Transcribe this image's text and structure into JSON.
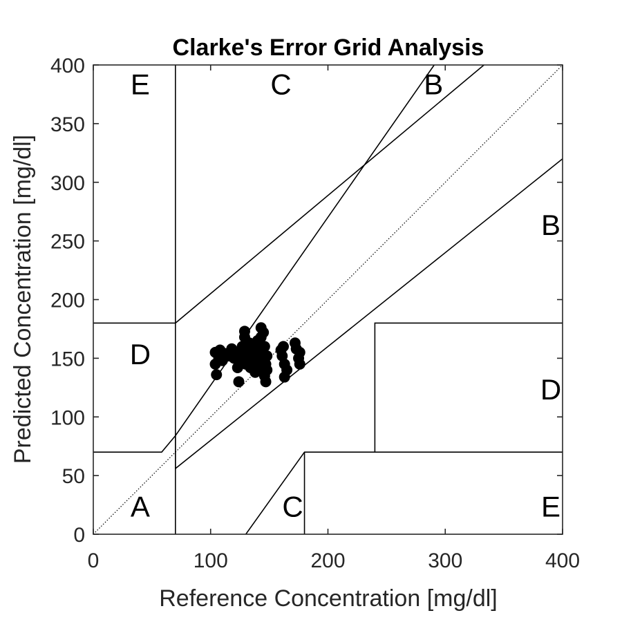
{
  "chart_data": {
    "type": "scatter",
    "title": "Clarke's Error Grid Analysis",
    "xlabel": "Reference Concentration [mg/dl]",
    "ylabel": "Predicted Concentration [mg/dl]",
    "xlim": [
      0,
      400
    ],
    "ylim": [
      0,
      400
    ],
    "xticks": [
      "0",
      "100",
      "200",
      "300",
      "400"
    ],
    "yticks": [
      "0",
      "50",
      "100",
      "150",
      "200",
      "250",
      "300",
      "350",
      "400"
    ],
    "grid": false,
    "points": [
      {
        "x": 104,
        "y": 155
      },
      {
        "x": 104,
        "y": 145
      },
      {
        "x": 105,
        "y": 136
      },
      {
        "x": 107,
        "y": 150
      },
      {
        "x": 108,
        "y": 157
      },
      {
        "x": 110,
        "y": 148
      },
      {
        "x": 112,
        "y": 154
      },
      {
        "x": 115,
        "y": 152
      },
      {
        "x": 118,
        "y": 158
      },
      {
        "x": 120,
        "y": 150
      },
      {
        "x": 122,
        "y": 155
      },
      {
        "x": 123,
        "y": 142
      },
      {
        "x": 124,
        "y": 130
      },
      {
        "x": 125,
        "y": 148
      },
      {
        "x": 127,
        "y": 160
      },
      {
        "x": 128,
        "y": 152
      },
      {
        "x": 129,
        "y": 168
      },
      {
        "x": 129,
        "y": 173
      },
      {
        "x": 130,
        "y": 145
      },
      {
        "x": 131,
        "y": 157
      },
      {
        "x": 132,
        "y": 150
      },
      {
        "x": 133,
        "y": 163
      },
      {
        "x": 134,
        "y": 142
      },
      {
        "x": 135,
        "y": 155
      },
      {
        "x": 136,
        "y": 148
      },
      {
        "x": 137,
        "y": 160
      },
      {
        "x": 138,
        "y": 138
      },
      {
        "x": 138,
        "y": 152
      },
      {
        "x": 139,
        "y": 145
      },
      {
        "x": 140,
        "y": 165
      },
      {
        "x": 141,
        "y": 150
      },
      {
        "x": 142,
        "y": 158
      },
      {
        "x": 142,
        "y": 140
      },
      {
        "x": 143,
        "y": 176
      },
      {
        "x": 143,
        "y": 168
      },
      {
        "x": 144,
        "y": 155
      },
      {
        "x": 145,
        "y": 148
      },
      {
        "x": 145,
        "y": 172
      },
      {
        "x": 146,
        "y": 135
      },
      {
        "x": 146,
        "y": 160
      },
      {
        "x": 147,
        "y": 130
      },
      {
        "x": 147,
        "y": 145
      },
      {
        "x": 148,
        "y": 152
      },
      {
        "x": 148,
        "y": 140
      },
      {
        "x": 160,
        "y": 157
      },
      {
        "x": 161,
        "y": 152
      },
      {
        "x": 162,
        "y": 160
      },
      {
        "x": 163,
        "y": 145
      },
      {
        "x": 163,
        "y": 134
      },
      {
        "x": 165,
        "y": 140
      },
      {
        "x": 172,
        "y": 163
      },
      {
        "x": 173,
        "y": 158
      },
      {
        "x": 175,
        "y": 150
      },
      {
        "x": 176,
        "y": 145
      },
      {
        "x": 176,
        "y": 155
      }
    ],
    "zone_labels": [
      {
        "text": "A",
        "x": 40,
        "y": 15
      },
      {
        "text": "B",
        "x": 290,
        "y": 375
      },
      {
        "text": "B",
        "x": 390,
        "y": 255
      },
      {
        "text": "C",
        "x": 160,
        "y": 375
      },
      {
        "text": "C",
        "x": 170,
        "y": 15
      },
      {
        "text": "D",
        "x": 40,
        "y": 145
      },
      {
        "text": "D",
        "x": 390,
        "y": 115
      },
      {
        "text": "E",
        "x": 40,
        "y": 375
      },
      {
        "text": "E",
        "x": 390,
        "y": 15
      }
    ],
    "zone_lines": [
      [
        [
          0,
          0
        ],
        [
          400,
          400
        ]
      ],
      [
        [
          0,
          70
        ],
        [
          58.3,
          70
        ],
        [
          70,
          84
        ],
        [
          70,
          56
        ],
        [
          400,
          320
        ]
      ],
      [
        [
          70,
          84
        ],
        [
          290.6,
          400
        ]
      ],
      [
        [
          70,
          0
        ],
        [
          70,
          400
        ]
      ],
      [
        [
          70,
          180
        ],
        [
          333,
          400
        ]
      ],
      [
        [
          130,
          0
        ],
        [
          180,
          70
        ],
        [
          400,
          70
        ]
      ],
      [
        [
          240,
          70
        ],
        [
          240,
          180
        ],
        [
          400,
          180
        ]
      ],
      [
        [
          0,
          180
        ],
        [
          70,
          180
        ]
      ],
      [
        [
          180,
          0
        ],
        [
          180,
          70
        ]
      ]
    ]
  }
}
